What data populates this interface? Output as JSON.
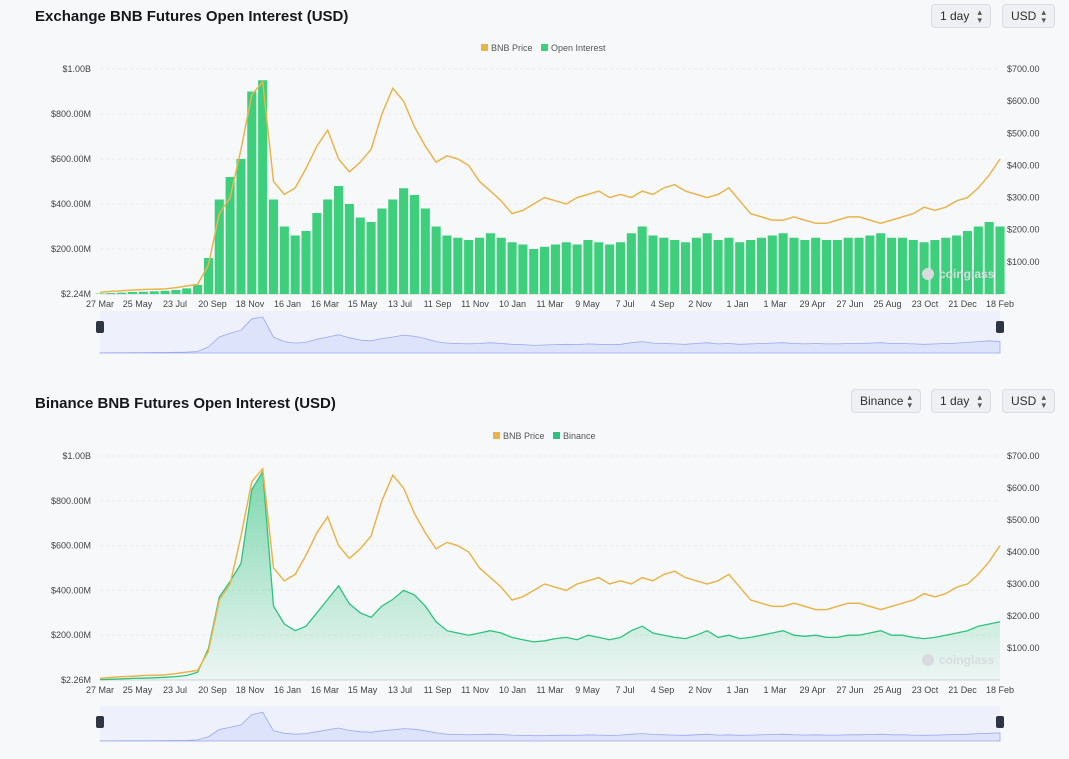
{
  "colors": {
    "price": "#e8b54d",
    "oi": "#3ecf7c",
    "binance": "#2ec27e",
    "grid": "#ececec",
    "nav": "#dde3fb",
    "navline": "#9aa8ee"
  },
  "watermark": "coinglass",
  "chart_data": [
    {
      "type": "bar",
      "title": "Exchange BNB Futures Open Interest (USD)",
      "controls": [
        "1 day",
        "USD"
      ],
      "legend": [
        "BNB Price",
        "Open Interest"
      ],
      "y_left_ticks": [
        "$1.00B",
        "$800.00M",
        "$600.00M",
        "$400.00M",
        "$200.00M",
        "$2.24M"
      ],
      "y_right_ticks": [
        "$700.00",
        "$600.00",
        "$500.00",
        "$400.00",
        "$300.00",
        "$200.00",
        "$100.00"
      ],
      "x_ticks": [
        "27 Mar",
        "25 May",
        "23 Jul",
        "20 Sep",
        "18 Nov",
        "16 Jan",
        "16 Mar",
        "15 May",
        "13 Jul",
        "11 Sep",
        "11 Nov",
        "10 Jan",
        "11 Mar",
        "9 May",
        "7 Jul",
        "4 Sep",
        "2 Nov",
        "1 Jan",
        "1 Mar",
        "29 Apr",
        "27 Jun",
        "25 Aug",
        "23 Oct",
        "21 Dec",
        "18 Feb"
      ],
      "ylim": [
        2.24,
        1000
      ],
      "ylim_right": [
        0,
        700
      ],
      "series": [
        {
          "name": "Open Interest",
          "axis": "left",
          "unit": "M USD",
          "values": [
            2,
            4,
            6,
            9,
            10,
            12,
            14,
            18,
            25,
            40,
            160,
            420,
            520,
            600,
            900,
            950,
            420,
            300,
            260,
            280,
            360,
            420,
            480,
            400,
            340,
            320,
            380,
            420,
            470,
            440,
            380,
            300,
            260,
            250,
            240,
            250,
            270,
            250,
            230,
            220,
            200,
            210,
            220,
            230,
            220,
            240,
            230,
            220,
            230,
            270,
            300,
            260,
            250,
            240,
            230,
            250,
            270,
            240,
            250,
            230,
            240,
            250,
            260,
            270,
            250,
            240,
            250,
            240,
            240,
            250,
            250,
            260,
            270,
            250,
            250,
            240,
            230,
            240,
            250,
            260,
            280,
            300,
            320,
            300
          ]
        },
        {
          "name": "BNB Price",
          "axis": "right",
          "unit": "USD",
          "values": [
            5,
            8,
            10,
            12,
            14,
            15,
            16,
            20,
            25,
            30,
            90,
            250,
            300,
            450,
            620,
            660,
            350,
            310,
            330,
            390,
            460,
            510,
            420,
            380,
            410,
            450,
            560,
            640,
            600,
            520,
            460,
            410,
            430,
            420,
            400,
            350,
            320,
            290,
            250,
            260,
            280,
            300,
            290,
            280,
            300,
            310,
            320,
            300,
            310,
            300,
            320,
            310,
            330,
            340,
            320,
            310,
            300,
            310,
            330,
            290,
            250,
            240,
            230,
            230,
            240,
            230,
            220,
            220,
            230,
            240,
            240,
            230,
            220,
            230,
            240,
            250,
            270,
            260,
            270,
            290,
            300,
            330,
            370,
            420
          ]
        }
      ]
    },
    {
      "type": "area",
      "title": "Binance BNB Futures Open Interest (USD)",
      "controls": [
        "Binance",
        "1 day",
        "USD"
      ],
      "legend": [
        "BNB Price",
        "Binance"
      ],
      "y_left_ticks": [
        "$1.00B",
        "$800.00M",
        "$600.00M",
        "$400.00M",
        "$200.00M",
        "$2.26M"
      ],
      "y_right_ticks": [
        "$700.00",
        "$600.00",
        "$500.00",
        "$400.00",
        "$300.00",
        "$200.00",
        "$100.00"
      ],
      "x_ticks": [
        "27 Mar",
        "25 May",
        "23 Jul",
        "20 Sep",
        "18 Nov",
        "16 Jan",
        "16 Mar",
        "15 May",
        "13 Jul",
        "11 Sep",
        "11 Nov",
        "10 Jan",
        "11 Mar",
        "9 May",
        "7 Jul",
        "4 Sep",
        "2 Nov",
        "1 Jan",
        "1 Mar",
        "29 Apr",
        "27 Jun",
        "25 Aug",
        "23 Oct",
        "21 Dec",
        "18 Feb"
      ],
      "ylim": [
        2.26,
        1000
      ],
      "ylim_right": [
        0,
        700
      ],
      "series": [
        {
          "name": "Binance",
          "axis": "left",
          "unit": "M USD",
          "values": [
            2,
            3,
            5,
            7,
            8,
            10,
            12,
            15,
            20,
            35,
            140,
            370,
            440,
            520,
            850,
            930,
            330,
            250,
            220,
            240,
            300,
            360,
            420,
            340,
            300,
            280,
            330,
            360,
            400,
            380,
            330,
            260,
            220,
            210,
            200,
            210,
            220,
            210,
            190,
            180,
            170,
            175,
            185,
            190,
            180,
            200,
            190,
            180,
            190,
            220,
            240,
            210,
            200,
            190,
            185,
            200,
            220,
            190,
            200,
            185,
            190,
            200,
            210,
            220,
            200,
            195,
            200,
            190,
            190,
            200,
            200,
            210,
            220,
            200,
            200,
            190,
            185,
            190,
            200,
            210,
            220,
            240,
            250,
            260
          ]
        },
        {
          "name": "BNB Price",
          "axis": "right",
          "unit": "USD",
          "values": [
            5,
            8,
            10,
            12,
            14,
            15,
            16,
            20,
            25,
            30,
            90,
            250,
            300,
            450,
            620,
            660,
            350,
            310,
            330,
            390,
            460,
            510,
            420,
            380,
            410,
            450,
            560,
            640,
            600,
            520,
            460,
            410,
            430,
            420,
            400,
            350,
            320,
            290,
            250,
            260,
            280,
            300,
            290,
            280,
            300,
            310,
            320,
            300,
            310,
            300,
            320,
            310,
            330,
            340,
            320,
            310,
            300,
            310,
            330,
            290,
            250,
            240,
            230,
            230,
            240,
            230,
            220,
            220,
            230,
            240,
            240,
            230,
            220,
            230,
            240,
            250,
            270,
            260,
            270,
            290,
            300,
            330,
            370,
            420
          ]
        }
      ]
    }
  ]
}
